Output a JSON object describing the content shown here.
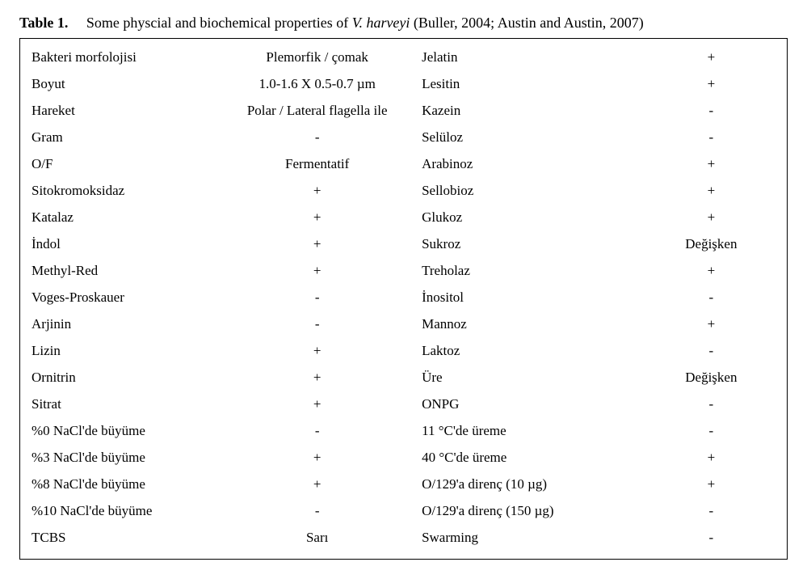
{
  "caption": {
    "label": "Table 1.",
    "text_before_italic": "Some physcial and biochemical properties of ",
    "italic": "V. harveyi",
    "text_after_italic": " (Buller, 2004; Austin and Austin, 2007)"
  },
  "layout": {
    "font_family": "Times New Roman",
    "caption_fontsize_pt": 13,
    "cell_fontsize_pt": 12,
    "border_color": "#000000",
    "background_color": "#ffffff",
    "text_color": "#000000",
    "col_widths_pct": [
      25,
      27,
      30,
      18
    ],
    "col_align": [
      "left",
      "center",
      "left",
      "center"
    ]
  },
  "table": {
    "type": "table",
    "rows": [
      [
        "Bakteri morfolojisi",
        "Plemorfik / çomak",
        "Jelatin",
        "+"
      ],
      [
        "Boyut",
        "1.0-1.6 X 0.5-0.7 µm",
        "Lesitin",
        "+"
      ],
      [
        "Hareket",
        "Polar / Lateral flagella ile",
        "Kazein",
        "-"
      ],
      [
        "Gram",
        "-",
        "Selüloz",
        "-"
      ],
      [
        "O/F",
        "Fermentatif",
        "Arabinoz",
        "+"
      ],
      [
        "Sitokromoksidaz",
        "+",
        "Sellobioz",
        "+"
      ],
      [
        "Katalaz",
        "+",
        "Glukoz",
        "+"
      ],
      [
        "İndol",
        "+",
        "Sukroz",
        "Değişken"
      ],
      [
        "Methyl-Red",
        "+",
        "Treholaz",
        "+"
      ],
      [
        "Voges-Proskauer",
        "-",
        "İnositol",
        "-"
      ],
      [
        "Arjinin",
        "-",
        "Mannoz",
        "+"
      ],
      [
        "Lizin",
        "+",
        "Laktoz",
        "-"
      ],
      [
        "Ornitrin",
        "+",
        "Üre",
        "Değişken"
      ],
      [
        "Sitrat",
        "+",
        "ONPG",
        "-"
      ],
      [
        "%0 NaCl'de büyüme",
        "-",
        "11 °C'de üreme",
        "-"
      ],
      [
        "%3 NaCl'de büyüme",
        "+",
        "40 °C'de üreme",
        "+"
      ],
      [
        "%8 NaCl'de büyüme",
        "+",
        "O/129'a direnç (10 µg)",
        "+"
      ],
      [
        "%10 NaCl'de büyüme",
        "-",
        "O/129'a direnç (150 µg)",
        "-"
      ],
      [
        "TCBS",
        "Sarı",
        "Swarming",
        "-"
      ]
    ]
  }
}
